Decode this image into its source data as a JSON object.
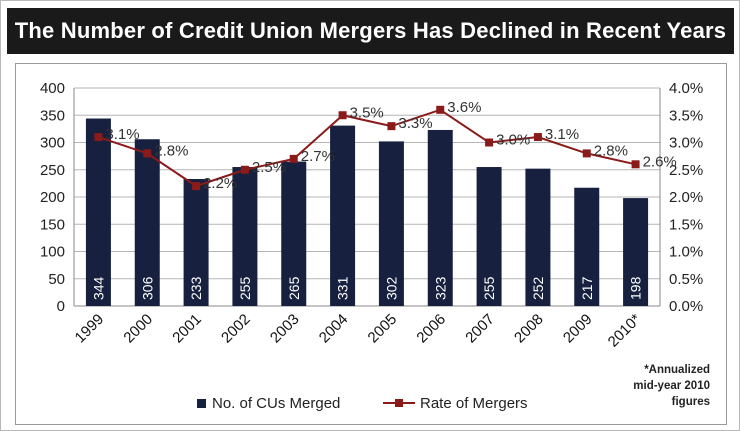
{
  "page_title": "The Number of Credit Union Mergers Has Declined in Recent Years",
  "colors": {
    "title_bg": "#1a1a1a",
    "bar": "#17213f",
    "line": "#8b1a1a",
    "grid": "#b5b5b5"
  },
  "chart_data": {
    "type": "bar",
    "categories": [
      "1999",
      "2000",
      "2001",
      "2002",
      "2003",
      "2004",
      "2005",
      "2006",
      "2007",
      "2008",
      "2009",
      "2010*"
    ],
    "series": [
      {
        "name": "No. of CUs Merged",
        "type": "bar",
        "axis": "left",
        "values": [
          344,
          306,
          233,
          255,
          265,
          331,
          302,
          323,
          255,
          252,
          217,
          198
        ],
        "labels": [
          "344",
          "306",
          "233",
          "255",
          "265",
          "331",
          "302",
          "323",
          "255",
          "252",
          "217",
          "198"
        ]
      },
      {
        "name": "Rate of Mergers",
        "type": "line",
        "axis": "right",
        "values": [
          3.1,
          2.8,
          2.2,
          2.5,
          2.7,
          3.5,
          3.3,
          3.6,
          3.0,
          3.1,
          2.8,
          2.6
        ],
        "labels": [
          "3.1%",
          "2.8%",
          "2.2%",
          "2.5%",
          "2.7%",
          "3.5%",
          "3.3%",
          "3.6%",
          "3.0%",
          "3.1%",
          "2.8%",
          "2.6%"
        ]
      }
    ],
    "y_left": {
      "range": [
        0,
        400
      ],
      "ticks": [
        "0",
        "50",
        "100",
        "150",
        "200",
        "250",
        "300",
        "350",
        "400"
      ]
    },
    "y_right": {
      "range": [
        0,
        4.0
      ],
      "ticks": [
        "0.0%",
        "0.5%",
        "1.0%",
        "1.5%",
        "2.0%",
        "2.5%",
        "3.0%",
        "3.5%",
        "4.0%"
      ]
    },
    "grid": true,
    "legend_position": "bottom",
    "note_lines": [
      "*Annualized",
      "mid-year 2010",
      "figures"
    ]
  }
}
